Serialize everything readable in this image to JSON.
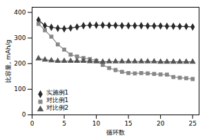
{
  "chart_data": {
    "type": "line",
    "xlabel": "循环数",
    "ylabel": "比容量, mAh/g",
    "x": [
      1,
      2,
      3,
      4,
      5,
      6,
      7,
      8,
      9,
      10,
      11,
      12,
      13,
      14,
      15,
      16,
      17,
      18,
      19,
      20,
      21,
      22,
      23,
      24,
      25
    ],
    "series": [
      {
        "name": "实施例1",
        "color": "#2a2a2a",
        "marker": "diamond",
        "values": [
          370,
          348,
          342,
          338,
          336,
          339,
          343,
          348,
          350,
          350,
          350,
          349,
          349,
          348,
          348,
          348,
          348,
          347,
          347,
          347,
          346,
          346,
          345,
          345,
          343
        ]
      },
      {
        "name": "对比例1",
        "color": "#888888",
        "marker": "square",
        "values": [
          355,
          330,
          305,
          275,
          255,
          235,
          228,
          222,
          218,
          212,
          195,
          183,
          175,
          168,
          163,
          162,
          163,
          162,
          160,
          158,
          157,
          148,
          145,
          143,
          140
        ]
      },
      {
        "name": "对比例2",
        "color": "#555555",
        "marker": "triangle",
        "values": [
          220,
          215,
          212,
          210,
          210,
          210,
          210,
          210,
          209,
          208,
          207,
          208,
          208,
          208,
          208,
          208,
          208,
          208,
          208,
          207,
          207,
          207,
          207,
          207,
          207
        ]
      }
    ],
    "xlim": [
      0,
      26
    ],
    "ylim": [
      0,
      420
    ],
    "xticks": [
      0,
      5,
      10,
      15,
      20,
      25
    ],
    "yticks": [
      0,
      100,
      200,
      300,
      400
    ],
    "legend": "lower left",
    "grid": false
  }
}
